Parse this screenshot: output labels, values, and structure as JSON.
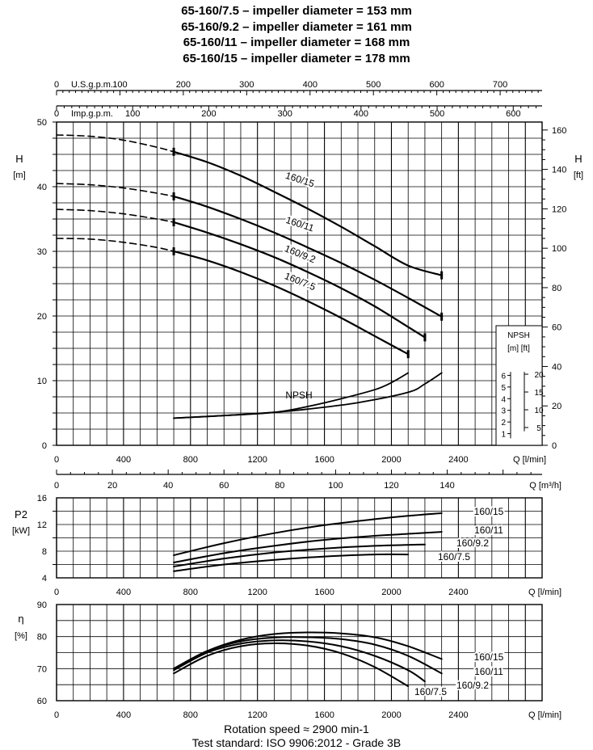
{
  "title_lines": [
    "65-160/7.5 – impeller diameter = 153 mm",
    "65-160/9.2 – impeller diameter = 161 mm",
    "65-160/11 – impeller diameter = 168 mm",
    "65-160/15 – impeller diameter = 178 mm"
  ],
  "footer": {
    "rotation": "Rotation speed ≈ 2900 min-1",
    "standard": "Test standard: ISO 9906:2012 - Grade 3B"
  },
  "chart_data": [
    {
      "type": "line",
      "panel": "head",
      "xlabel": "Q [l/min]",
      "ylabel": [
        "H",
        "[m]"
      ],
      "y2label": [
        "H",
        "[ft]"
      ],
      "xlim": [
        0,
        2900
      ],
      "ylim": [
        0,
        50
      ],
      "x_ticks": [
        0,
        400,
        800,
        1200,
        1600,
        2000,
        2400
      ],
      "y_ticks": [
        0,
        10,
        20,
        30,
        40,
        50
      ],
      "y2_ticks": [
        0,
        20,
        40,
        60,
        80,
        100,
        120,
        140,
        160
      ],
      "usgpm_axis": {
        "label": "U.S.g.p.m.",
        "ticks": [
          0,
          100,
          200,
          300,
          400,
          500,
          600,
          700
        ]
      },
      "impgpm_axis": {
        "label": "Imp.g.p.m.",
        "ticks": [
          0,
          100,
          200,
          300,
          400,
          500,
          600
        ]
      },
      "m3h_axis": {
        "label": "Q [m³/h]",
        "ticks": [
          0,
          20,
          40,
          60,
          80,
          100,
          120,
          140
        ]
      },
      "series": [
        {
          "name": "160/15",
          "dashed": {
            "x": [
              0,
              200,
              400,
              600,
              700
            ],
            "y": [
              48.0,
              47.8,
              47.2,
              46.1,
              45.4
            ]
          },
          "x": [
            700,
            900,
            1100,
            1300,
            1500,
            1700,
            1900,
            2100,
            2300
          ],
          "y": [
            45.4,
            43.8,
            41.7,
            39.2,
            36.6,
            33.8,
            30.8,
            27.8,
            26.3
          ]
        },
        {
          "name": "160/11",
          "dashed": {
            "x": [
              0,
              200,
              400,
              600,
              700
            ],
            "y": [
              40.5,
              40.3,
              39.8,
              39.0,
              38.5
            ]
          },
          "x": [
            700,
            900,
            1100,
            1300,
            1500,
            1700,
            1900,
            2100,
            2300
          ],
          "y": [
            38.5,
            36.9,
            35.0,
            32.9,
            30.6,
            28.2,
            25.6,
            22.8,
            19.9
          ]
        },
        {
          "name": "160/9.2",
          "dashed": {
            "x": [
              0,
              200,
              400,
              600,
              700
            ],
            "y": [
              36.5,
              36.3,
              35.8,
              35.0,
              34.5
            ]
          },
          "x": [
            700,
            900,
            1100,
            1300,
            1500,
            1700,
            1900,
            2100,
            2200
          ],
          "y": [
            34.5,
            32.9,
            31.1,
            29.1,
            26.8,
            24.3,
            21.5,
            18.3,
            16.7
          ]
        },
        {
          "name": "160/7.5",
          "dashed": {
            "x": [
              0,
              200,
              400,
              600,
              700
            ],
            "y": [
              32.0,
              31.9,
              31.4,
              30.6,
              30.0
            ]
          },
          "x": [
            700,
            900,
            1100,
            1300,
            1500,
            1700,
            1900,
            2100
          ],
          "y": [
            30.0,
            28.6,
            26.8,
            24.7,
            22.3,
            19.7,
            16.9,
            14.1
          ]
        }
      ],
      "npsh": {
        "label": "NPSH",
        "axis_title": "NPSH",
        "axis_units": "[m] [ft]",
        "m_ticks": [
          1,
          2,
          3,
          4,
          5,
          6
        ],
        "ft_ticks": [
          5,
          10,
          15,
          20
        ],
        "series": [
          {
            "x": [
              700,
              1000,
              1300,
              1500,
              1700,
              1900,
              2000,
              2100
            ],
            "y": [
              4.2,
              4.6,
              5.1,
              6.0,
              7.2,
              8.6,
              9.7,
              11.2
            ]
          },
          {
            "x": [
              700,
              1000,
              1300,
              1500,
              1800,
              2100,
              2200,
              2300
            ],
            "y": [
              4.2,
              4.6,
              5.1,
              5.6,
              6.6,
              8.2,
              9.5,
              11.2
            ]
          }
        ]
      }
    },
    {
      "type": "line",
      "panel": "power",
      "xlabel": "Q [l/min]",
      "ylabel": [
        "P2",
        "[kW]"
      ],
      "xlim": [
        0,
        2900
      ],
      "ylim": [
        4,
        16
      ],
      "x_ticks": [
        0,
        400,
        800,
        1200,
        1600,
        2000,
        2400
      ],
      "y_ticks": [
        4,
        8,
        12,
        16
      ],
      "y_minor_ticks": [
        6,
        10,
        14
      ],
      "series": [
        {
          "name": "160/15",
          "x": [
            700,
            1000,
            1300,
            1600,
            1900,
            2100,
            2300
          ],
          "y": [
            7.4,
            9.2,
            10.7,
            11.9,
            12.8,
            13.3,
            13.7
          ]
        },
        {
          "name": "160/11",
          "x": [
            700,
            1000,
            1300,
            1600,
            1900,
            2100,
            2300
          ],
          "y": [
            6.3,
            7.7,
            8.8,
            9.7,
            10.3,
            10.6,
            10.9
          ]
        },
        {
          "name": "160/9.2",
          "x": [
            700,
            1000,
            1300,
            1600,
            1900,
            2200
          ],
          "y": [
            5.7,
            6.9,
            7.8,
            8.4,
            8.8,
            9.0
          ]
        },
        {
          "name": "160/7.5",
          "x": [
            700,
            1000,
            1300,
            1600,
            1900,
            2100
          ],
          "y": [
            5.0,
            6.0,
            6.7,
            7.2,
            7.5,
            7.5
          ]
        }
      ]
    },
    {
      "type": "line",
      "panel": "efficiency",
      "xlabel": "Q [l/min]",
      "ylabel": [
        "η",
        "[%]"
      ],
      "xlim": [
        0,
        2900
      ],
      "ylim": [
        60,
        90
      ],
      "x_ticks": [
        0,
        400,
        800,
        1200,
        1600,
        2000,
        2400
      ],
      "y_ticks": [
        60,
        70,
        80,
        90
      ],
      "series": [
        {
          "name": "160/15",
          "x": [
            700,
            900,
            1100,
            1300,
            1500,
            1700,
            1900,
            2100,
            2300
          ],
          "y": [
            70.0,
            75.5,
            79.0,
            80.8,
            81.3,
            81.0,
            79.8,
            77.0,
            73.0
          ]
        },
        {
          "name": "160/11",
          "x": [
            700,
            900,
            1100,
            1300,
            1500,
            1700,
            1900,
            2100,
            2300
          ],
          "y": [
            70.0,
            75.5,
            78.5,
            79.7,
            79.8,
            79.2,
            77.5,
            74.0,
            68.5
          ]
        },
        {
          "name": "160/9.2",
          "x": [
            700,
            900,
            1100,
            1300,
            1500,
            1700,
            1900,
            2100,
            2200
          ],
          "y": [
            69.5,
            75.0,
            77.8,
            78.8,
            78.5,
            77.0,
            74.0,
            69.5,
            66.0
          ]
        },
        {
          "name": "160/7.5",
          "x": [
            700,
            900,
            1100,
            1300,
            1500,
            1700,
            1900,
            2100
          ],
          "y": [
            68.5,
            74.0,
            77.0,
            77.9,
            77.2,
            74.8,
            70.5,
            64.5
          ]
        }
      ]
    }
  ]
}
